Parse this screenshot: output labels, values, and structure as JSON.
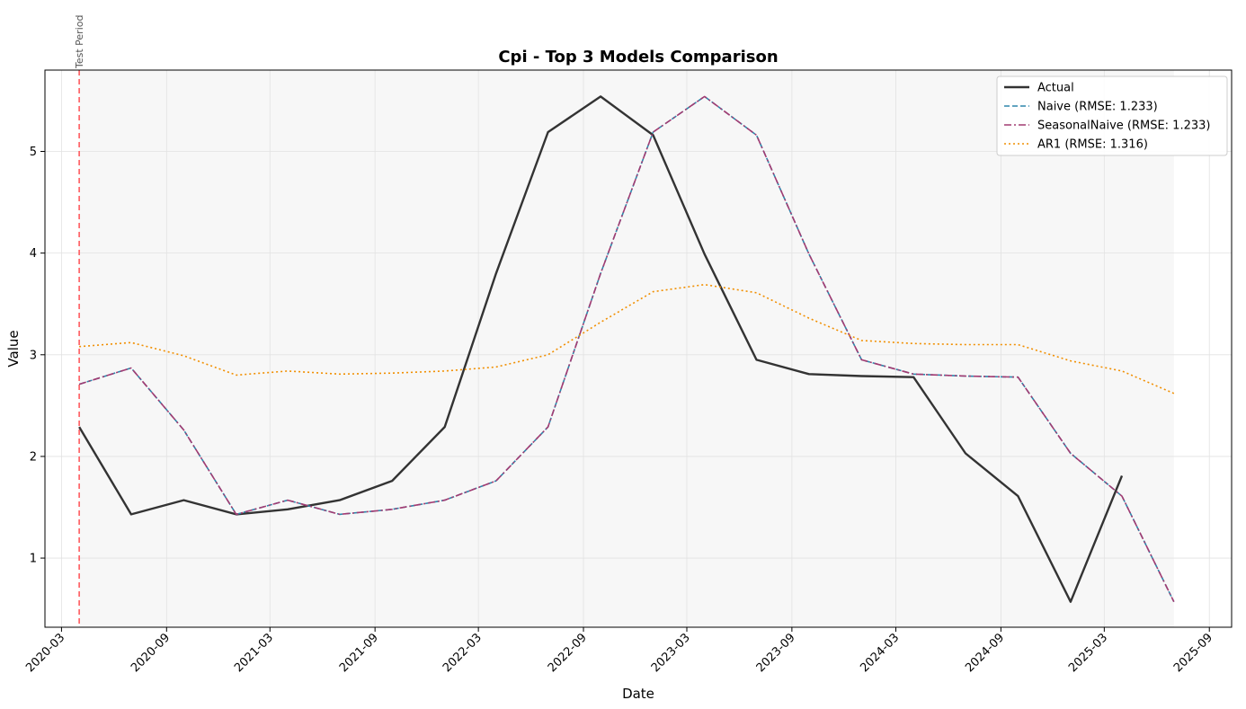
{
  "chart_data": {
    "type": "line",
    "title": "Cpi - Top 3 Models Comparison",
    "xlabel": "Date",
    "ylabel": "Value",
    "x_ticks": [
      "2020-03",
      "2020-09",
      "2021-03",
      "2021-09",
      "2022-03",
      "2022-09",
      "2023-03",
      "2023-09",
      "2024-03",
      "2024-09",
      "2025-03",
      "2025-09"
    ],
    "y_ticks": [
      1,
      2,
      3,
      4,
      5
    ],
    "xlim": [
      "2020-02-01",
      "2025-10-10"
    ],
    "ylim": [
      0.32,
      5.8
    ],
    "grid": true,
    "legend_position": "top-right",
    "test_period": {
      "start": "2020-04-01",
      "end": "2025-07-01",
      "label": "Test Period",
      "line_color": "#ff5a5f",
      "shade_color": "#f7f7f7"
    },
    "x": [
      "2020-04-01",
      "2020-07-01",
      "2020-10-01",
      "2021-01-01",
      "2021-04-01",
      "2021-07-01",
      "2021-10-01",
      "2022-01-01",
      "2022-04-01",
      "2022-07-01",
      "2022-10-01",
      "2023-01-01",
      "2023-04-01",
      "2023-07-01",
      "2023-10-01",
      "2024-01-01",
      "2024-04-01",
      "2024-07-01",
      "2024-10-01",
      "2025-01-01",
      "2025-04-01",
      "2025-07-01"
    ],
    "series": [
      {
        "name": "Actual",
        "color": "#333333",
        "style": "solid",
        "values": [
          2.29,
          1.43,
          1.57,
          1.43,
          1.48,
          1.57,
          1.76,
          2.29,
          3.8,
          5.19,
          5.54,
          5.16,
          3.99,
          2.95,
          2.81,
          2.79,
          2.78,
          2.03,
          1.61,
          0.57,
          1.81,
          null
        ]
      },
      {
        "name": "Naive (RMSE: 1.233)",
        "color": "#2e86ab",
        "style": "dashed",
        "values": [
          2.71,
          2.87,
          2.26,
          1.43,
          1.57,
          1.43,
          1.48,
          1.57,
          1.76,
          2.29,
          3.8,
          5.19,
          5.54,
          5.16,
          3.99,
          2.95,
          2.81,
          2.79,
          2.78,
          2.03,
          1.61,
          0.57
        ]
      },
      {
        "name": "SeasonalNaive (RMSE: 1.233)",
        "color": "#a23b72",
        "style": "dashdot",
        "values": [
          2.71,
          2.87,
          2.26,
          1.43,
          1.57,
          1.43,
          1.48,
          1.57,
          1.76,
          2.29,
          3.8,
          5.19,
          5.54,
          5.16,
          3.99,
          2.95,
          2.81,
          2.79,
          2.78,
          2.03,
          1.61,
          0.57
        ]
      },
      {
        "name": "AR1 (RMSE: 1.316)",
        "color": "#f18f01",
        "style": "dotted",
        "values": [
          3.08,
          3.12,
          2.99,
          2.8,
          2.84,
          2.81,
          2.82,
          2.84,
          2.88,
          3.0,
          3.32,
          3.62,
          3.69,
          3.61,
          3.36,
          3.14,
          3.11,
          3.1,
          3.1,
          2.94,
          2.84,
          2.62
        ]
      }
    ]
  }
}
